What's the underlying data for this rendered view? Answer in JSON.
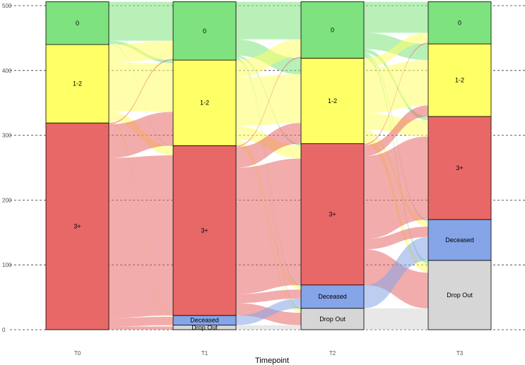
{
  "chart_data": {
    "type": "alluvial",
    "title": "",
    "xlabel": "Timepoint",
    "ylabel": "",
    "ylim": [
      0,
      500
    ],
    "yticks": [
      0,
      100,
      200,
      300,
      400,
      500
    ],
    "gridlines": "dashed-horizontal",
    "categories": [
      "0",
      "1-2",
      "3+",
      "Deceased",
      "Drop Out"
    ],
    "category_colors": {
      "0": "#7EE37E",
      "1-2": "#FFFF66",
      "3+": "#E86868",
      "Deceased": "#86A4E8",
      "Drop Out": "#D6D6D6"
    },
    "node_labels": {
      "T1": [
        "0",
        "1-2",
        "3+",
        "Deceased",
        "Drop Out"
      ],
      "T2": [
        "0",
        "1-2",
        "3+",
        "Deceased",
        "Drop Out"
      ],
      "T3": [
        "0",
        "1-2",
        "3+",
        "Deceased",
        "Drop Out"
      ]
    },
    "timepoints": [
      {
        "label": "T0",
        "counts": {
          "0": 66,
          "1-2": 121,
          "3+": 319,
          "Deceased": 0,
          "Drop Out": 0
        }
      },
      {
        "label": "T1",
        "counts": {
          "0": 90,
          "1-2": 132,
          "3+": 262,
          "Deceased": 15,
          "Drop Out": 7
        }
      },
      {
        "label": "T2",
        "counts": {
          "0": 87,
          "1-2": 132,
          "3+": 218,
          "Deceased": 36,
          "Drop Out": 33
        }
      },
      {
        "label": "T3",
        "counts": {
          "0": 65,
          "1-2": 112,
          "3+": 159,
          "Deceased": 63,
          "Drop Out": 107
        }
      }
    ],
    "flows": [
      [
        {
          "from": "0",
          "to": "0",
          "value": 60
        },
        {
          "from": "0",
          "to": "1-2",
          "value": 5
        },
        {
          "from": "0",
          "to": "3+",
          "value": 1
        },
        {
          "from": "1-2",
          "to": "0",
          "value": 28
        },
        {
          "from": "1-2",
          "to": "1-2",
          "value": 75
        },
        {
          "from": "1-2",
          "to": "3+",
          "value": 14
        },
        {
          "from": "1-2",
          "to": "Deceased",
          "value": 2
        },
        {
          "from": "1-2",
          "to": "Drop Out",
          "value": 2
        },
        {
          "from": "3+",
          "to": "0",
          "value": 2
        },
        {
          "from": "3+",
          "to": "1-2",
          "value": 52
        },
        {
          "from": "3+",
          "to": "3+",
          "value": 247
        },
        {
          "from": "3+",
          "to": "Deceased",
          "value": 13
        },
        {
          "from": "3+",
          "to": "Drop Out",
          "value": 5
        }
      ],
      [
        {
          "from": "0",
          "to": "0",
          "value": 58
        },
        {
          "from": "0",
          "to": "1-2",
          "value": 25
        },
        {
          "from": "0",
          "to": "3+",
          "value": 3
        },
        {
          "from": "0",
          "to": "Deceased",
          "value": 2
        },
        {
          "from": "0",
          "to": "Drop Out",
          "value": 2
        },
        {
          "from": "1-2",
          "to": "0",
          "value": 27
        },
        {
          "from": "1-2",
          "to": "1-2",
          "value": 75
        },
        {
          "from": "1-2",
          "to": "3+",
          "value": 20
        },
        {
          "from": "1-2",
          "to": "Deceased",
          "value": 5
        },
        {
          "from": "1-2",
          "to": "Drop Out",
          "value": 5
        },
        {
          "from": "3+",
          "to": "0",
          "value": 2
        },
        {
          "from": "3+",
          "to": "1-2",
          "value": 32
        },
        {
          "from": "3+",
          "to": "3+",
          "value": 195
        },
        {
          "from": "3+",
          "to": "Deceased",
          "value": 14
        },
        {
          "from": "3+",
          "to": "Drop Out",
          "value": 19
        },
        {
          "from": "Deceased",
          "to": "Deceased",
          "value": 15
        },
        {
          "from": "Drop Out",
          "to": "Drop Out",
          "value": 7
        }
      ],
      [
        {
          "from": "0",
          "to": "0",
          "value": 48
        },
        {
          "from": "0",
          "to": "1-2",
          "value": 25
        },
        {
          "from": "0",
          "to": "3+",
          "value": 6
        },
        {
          "from": "0",
          "to": "Deceased",
          "value": 3
        },
        {
          "from": "0",
          "to": "Drop Out",
          "value": 5
        },
        {
          "from": "1-2",
          "to": "0",
          "value": 15
        },
        {
          "from": "1-2",
          "to": "1-2",
          "value": 70
        },
        {
          "from": "1-2",
          "to": "3+",
          "value": 25
        },
        {
          "from": "1-2",
          "to": "Deceased",
          "value": 8
        },
        {
          "from": "1-2",
          "to": "Drop Out",
          "value": 14
        },
        {
          "from": "3+",
          "to": "0",
          "value": 2
        },
        {
          "from": "3+",
          "to": "1-2",
          "value": 17
        },
        {
          "from": "3+",
          "to": "3+",
          "value": 128
        },
        {
          "from": "3+",
          "to": "Deceased",
          "value": 16
        },
        {
          "from": "3+",
          "to": "Drop Out",
          "value": 55
        },
        {
          "from": "Deceased",
          "to": "Deceased",
          "value": 36
        },
        {
          "from": "Drop Out",
          "to": "Drop Out",
          "value": 33
        }
      ]
    ]
  }
}
